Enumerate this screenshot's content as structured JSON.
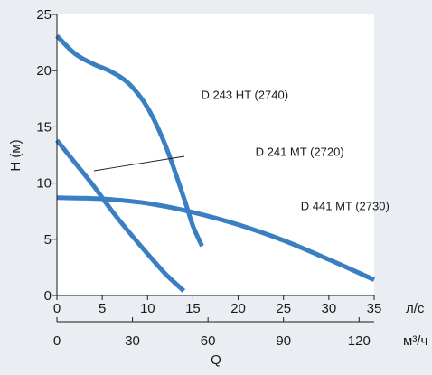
{
  "chart_data": {
    "type": "line",
    "xlabel": "Q",
    "ylabel": "H (м)",
    "xunit_primary": "л/с",
    "xunit_secondary": "м³/ч",
    "xlim": [
      0,
      35
    ],
    "ylim": [
      0,
      25
    ],
    "x_ticks": [
      0,
      5,
      10,
      15,
      20,
      25,
      30,
      35
    ],
    "y_ticks": [
      0,
      5,
      10,
      15,
      20,
      25
    ],
    "x_ticks_secondary": [
      0,
      30,
      60,
      90,
      120
    ],
    "secondary_per_primary": 3.6,
    "grid": false,
    "colors": {
      "line": "#3a7fc1",
      "plot_bg": "#ffffff",
      "page_bg": "#eaeef3",
      "axis": "#1a1a1a"
    },
    "series": [
      {
        "name": "D 243 HT (2740)",
        "x": [
          0,
          2,
          4,
          6,
          8,
          10,
          12,
          14,
          15,
          16
        ],
        "y": [
          23.1,
          21.5,
          20.6,
          19.9,
          18.8,
          16.7,
          13.3,
          8.7,
          6.2,
          4.4
        ]
      },
      {
        "name": "D 241 MT (2720)",
        "x": [
          0,
          2,
          4,
          6,
          8,
          10,
          12,
          14
        ],
        "y": [
          13.8,
          11.8,
          9.8,
          7.6,
          5.6,
          3.7,
          1.9,
          0.4
        ]
      },
      {
        "name": "D 441 MT (2730)",
        "x": [
          0,
          5,
          10,
          15,
          20,
          25,
          30,
          35
        ],
        "y": [
          8.7,
          8.6,
          8.2,
          7.4,
          6.3,
          4.9,
          3.2,
          1.4
        ]
      }
    ],
    "annotations": [
      {
        "text": "D 243 HT (2740)",
        "x": 15.9,
        "y": 17.5
      },
      {
        "text": "D 241 MT (2720)",
        "x": 21.9,
        "y": 12.4
      },
      {
        "text": "D 441 MT (2730)",
        "x": 26.9,
        "y": 7.6
      }
    ]
  }
}
